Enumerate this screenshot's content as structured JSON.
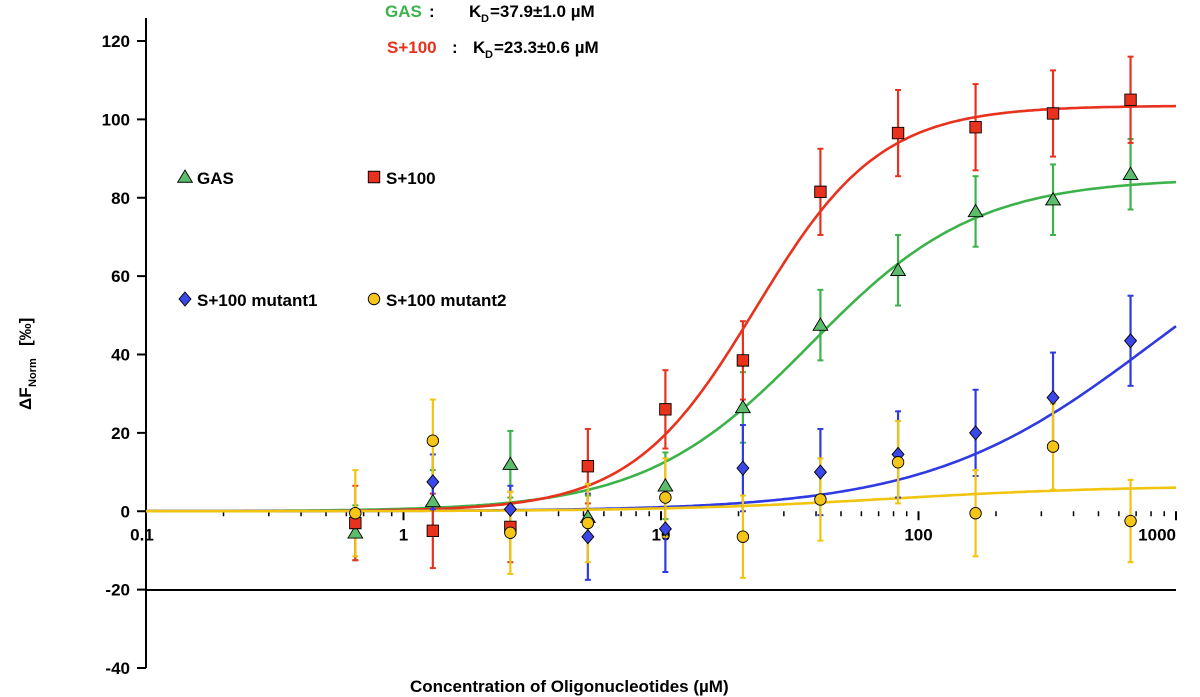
{
  "chart_data": {
    "type": "scatter",
    "x_scale": "log",
    "xlim": [
      0.1,
      1000
    ],
    "ylim": [
      -40,
      120
    ],
    "xlabel": "Concentration of Oligonucleotides (µM)",
    "ylabel": {
      "main": "ΔF",
      "sub": "Norm",
      "unit": "[‰]"
    },
    "x_ticks": [
      {
        "value": 0.1,
        "label": "0.1"
      },
      {
        "value": 1,
        "label": "1"
      },
      {
        "value": 10,
        "label": "10"
      },
      {
        "value": 100,
        "label": "100"
      },
      {
        "value": 1000,
        "label": "1000"
      }
    ],
    "y_ticks": [
      {
        "value": 120,
        "label": "120"
      },
      {
        "value": 100,
        "label": "100"
      },
      {
        "value": 80,
        "label": "80"
      },
      {
        "value": 60,
        "label": "60"
      },
      {
        "value": 40,
        "label": "40"
      },
      {
        "value": 20,
        "label": "20"
      },
      {
        "value": 0,
        "label": "0"
      },
      {
        "value": -20,
        "label": "-20"
      },
      {
        "value": -40,
        "label": "-40"
      }
    ],
    "annotations": [
      {
        "name": "GAS",
        "label": "GAS",
        "colon": ":",
        "kd_prefix": "K",
        "kd_sub": "D",
        "kd_value": "=37.9±1.0 µM",
        "color": "#3cb34a"
      },
      {
        "name": "S+100",
        "label": "S+100",
        "colon": ":",
        "kd_prefix": "K",
        "kd_sub": "D",
        "kd_value": "=23.3±0.6 µM",
        "color": "#e8321e"
      }
    ],
    "series": [
      {
        "name": "GAS",
        "slug": "gas",
        "marker": "triangle",
        "color": "#3cb34a",
        "fill": "#5bbd6b",
        "fit": {
          "type": "hill",
          "bottom": 0,
          "top": 85,
          "kd": 37.9,
          "n": 1.35
        },
        "points": [
          {
            "x": 0.65,
            "y": -5.5,
            "err": 7
          },
          {
            "x": 1.3,
            "y": 2.5,
            "err": 8
          },
          {
            "x": 2.6,
            "y": 12,
            "err": 8.5
          },
          {
            "x": 5.2,
            "y": -1.5,
            "err": 5.5
          },
          {
            "x": 10.4,
            "y": 6.5,
            "err": 8.5
          },
          {
            "x": 20.8,
            "y": 26.5,
            "err": 9
          },
          {
            "x": 41.6,
            "y": 47.5,
            "err": 9
          },
          {
            "x": 83.3,
            "y": 61.5,
            "err": 9
          },
          {
            "x": 166.6,
            "y": 76.5,
            "err": 9
          },
          {
            "x": 333,
            "y": 79.5,
            "err": 9
          },
          {
            "x": 666,
            "y": 86,
            "err": 9
          }
        ]
      },
      {
        "name": "S+100",
        "slug": "s100",
        "marker": "square",
        "color": "#e8321e",
        "fill": "#e8321e",
        "fit": {
          "type": "hill",
          "bottom": 0,
          "top": 103.5,
          "kd": 23.3,
          "n": 1.8
        },
        "points": [
          {
            "x": 0.65,
            "y": -3,
            "err": 9.5
          },
          {
            "x": 1.3,
            "y": -5,
            "err": 9.5
          },
          {
            "x": 2.6,
            "y": -4,
            "err": 9
          },
          {
            "x": 5.2,
            "y": 11.5,
            "err": 9.5
          },
          {
            "x": 10.4,
            "y": 26,
            "err": 10
          },
          {
            "x": 20.8,
            "y": 38.5,
            "err": 10
          },
          {
            "x": 41.6,
            "y": 81.5,
            "err": 11
          },
          {
            "x": 83.3,
            "y": 96.5,
            "err": 11
          },
          {
            "x": 166.6,
            "y": 98,
            "err": 11
          },
          {
            "x": 333,
            "y": 101.5,
            "err": 11
          },
          {
            "x": 666,
            "y": 105,
            "err": 11
          }
        ]
      },
      {
        "name": "S+100 mutant1",
        "slug": "mutant1",
        "marker": "diamond",
        "color": "#2f3be0",
        "fill": "#3b47e6",
        "fit": {
          "type": "hill",
          "bottom": 0,
          "top": 85,
          "kd": 800,
          "n": 1.0
        },
        "points": [
          {
            "x": 1.3,
            "y": 7.5,
            "err": 7
          },
          {
            "x": 2.6,
            "y": 0.5,
            "err": 6
          },
          {
            "x": 5.2,
            "y": -6.5,
            "err": 11
          },
          {
            "x": 10.4,
            "y": -4.5,
            "err": 11
          },
          {
            "x": 20.8,
            "y": 11,
            "err": 11
          },
          {
            "x": 41.6,
            "y": 10,
            "err": 11
          },
          {
            "x": 83.3,
            "y": 14.5,
            "err": 11
          },
          {
            "x": 166.6,
            "y": 20,
            "err": 11
          },
          {
            "x": 333,
            "y": 29,
            "err": 11.5
          },
          {
            "x": 666,
            "y": 43.5,
            "err": 11.5
          }
        ]
      },
      {
        "name": "S+100 mutant2",
        "slug": "mutant2",
        "marker": "circle",
        "color": "#f1c40f",
        "fill": "#f5c518",
        "fit": {
          "type": "hill",
          "bottom": 0,
          "top": 6.5,
          "kd": 80,
          "n": 1.0
        },
        "points": [
          {
            "x": 0.65,
            "y": -0.5,
            "err": 11
          },
          {
            "x": 1.3,
            "y": 18,
            "err": 10.5
          },
          {
            "x": 2.6,
            "y": -5.5,
            "err": 10.5
          },
          {
            "x": 5.2,
            "y": -3,
            "err": 10
          },
          {
            "x": 10.4,
            "y": 3.5,
            "err": 10
          },
          {
            "x": 20.8,
            "y": -6.5,
            "err": 10.5
          },
          {
            "x": 41.6,
            "y": 3,
            "err": 10.5
          },
          {
            "x": 83.3,
            "y": 12.5,
            "err": 10.5
          },
          {
            "x": 166.6,
            "y": -0.5,
            "err": 11
          },
          {
            "x": 333,
            "y": 16.5,
            "err": 11
          },
          {
            "x": 666,
            "y": -2.5,
            "err": 10.5
          }
        ]
      }
    ],
    "legend": [
      {
        "label": "GAS",
        "marker": "triangle",
        "color": "#3cb34a",
        "fill": "#5bbd6b"
      },
      {
        "label": "S+100",
        "marker": "square",
        "color": "#e8321e",
        "fill": "#e8321e"
      },
      {
        "label": "S+100 mutant1",
        "marker": "diamond",
        "color": "#2f3be0",
        "fill": "#3b47e6"
      },
      {
        "label": "S+100 mutant2",
        "marker": "circle",
        "color": "#f1c40f",
        "fill": "#f5c518"
      }
    ]
  }
}
